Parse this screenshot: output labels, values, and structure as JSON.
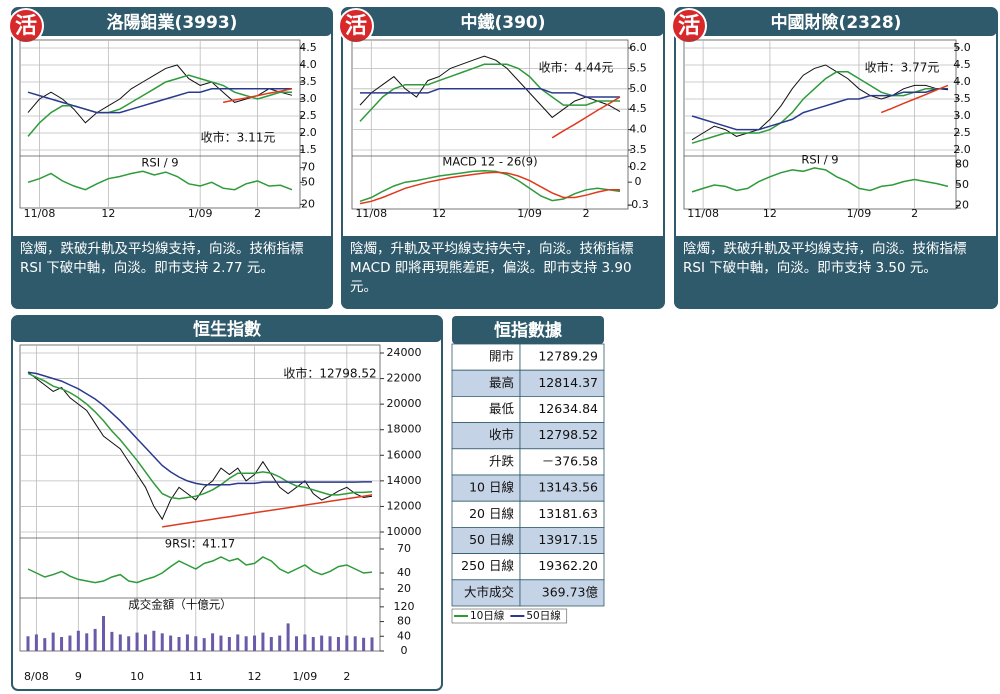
{
  "chart_data": [
    {
      "type": "line",
      "badge": "活",
      "title": "洛陽鉬業(3993)",
      "note": "收市：3.11元",
      "caption": "陰燭，跌破升軌及平均線支持，向淡。技術指標 RSI 下破中軸，向淡。即市支持 2.77 元。",
      "categories": [
        null,
        "11/08",
        null,
        null,
        null,
        null,
        null,
        "12",
        null,
        null,
        null,
        null,
        null,
        null,
        null,
        "1/09",
        null,
        null,
        null,
        null,
        "2",
        null,
        null,
        null
      ],
      "ylim": [
        1.5,
        4.5
      ],
      "yticks": [
        1.5,
        {
          "value": 2,
          "label": "2.0"
        },
        2.5,
        {
          "value": 3,
          "label": "3.0"
        },
        3.5,
        {
          "value": 4,
          "label": "4.0"
        },
        4.5
      ],
      "series": [
        {
          "color": "#111111",
          "values": [
            2.6,
            3.0,
            3.2,
            3.0,
            2.7,
            2.3,
            2.6,
            2.8,
            3.0,
            3.3,
            3.5,
            3.7,
            3.9,
            4.0,
            3.6,
            3.4,
            3.5,
            3.2,
            2.9,
            3.0,
            3.1,
            3.3,
            3.2,
            3.11
          ]
        },
        {
          "color": "#2e9b3a",
          "values": [
            1.9,
            2.3,
            2.6,
            2.8,
            2.8,
            2.7,
            2.6,
            2.6,
            2.7,
            2.9,
            3.1,
            3.3,
            3.5,
            3.6,
            3.7,
            3.6,
            3.5,
            3.4,
            3.2,
            3.1,
            3.0,
            3.1,
            3.2,
            3.2
          ]
        },
        {
          "color": "#2b3a8f",
          "values": [
            3.2,
            3.1,
            3.0,
            2.9,
            2.8,
            2.7,
            2.6,
            2.6,
            2.6,
            2.7,
            2.8,
            2.9,
            3.0,
            3.1,
            3.2,
            3.2,
            3.3,
            3.3,
            3.3,
            3.3,
            3.3,
            3.3,
            3.3,
            3.3
          ]
        },
        {
          "color": "#e03a1e",
          "values": [
            null,
            null,
            null,
            null,
            null,
            null,
            null,
            null,
            null,
            null,
            null,
            null,
            null,
            null,
            null,
            null,
            null,
            2.9,
            2.97,
            3.03,
            3.1,
            3.17,
            3.23,
            3.3
          ]
        }
      ],
      "indicator": {
        "title": "RSI / 9",
        "ylim": [
          15,
          75
        ],
        "yticks": [
          20,
          50,
          70
        ],
        "series": [
          {
            "color": "#2e9b3a",
            "values": [
              50,
              55,
              62,
              52,
              45,
              40,
              48,
              55,
              58,
              62,
              65,
              60,
              64,
              58,
              48,
              45,
              50,
              42,
              40,
              48,
              52,
              45,
              46,
              40
            ]
          }
        ]
      }
    },
    {
      "type": "line",
      "badge": "活",
      "title": "中鐵(390)",
      "note": "收市：4.44元",
      "caption": "陰燭，升軌及平均線支持失守，向淡。技術指標 MACD 即將再現熊差距，偏淡。即市支持 3.90 元。",
      "categories": [
        null,
        "11/08",
        null,
        null,
        null,
        null,
        null,
        "12",
        null,
        null,
        null,
        null,
        null,
        null,
        null,
        "1/09",
        null,
        null,
        null,
        null,
        "2",
        null,
        null,
        null
      ],
      "ylim": [
        3.5,
        6.0
      ],
      "yticks": [
        3.5,
        {
          "value": 4,
          "label": "4.0"
        },
        4.5,
        {
          "value": 5,
          "label": "5.0"
        },
        5.5,
        {
          "value": 6,
          "label": "6.0"
        }
      ],
      "series": [
        {
          "color": "#111111",
          "values": [
            4.6,
            4.9,
            5.1,
            5.3,
            5.0,
            4.8,
            5.2,
            5.3,
            5.5,
            5.6,
            5.7,
            5.8,
            5.7,
            5.5,
            5.2,
            4.9,
            4.6,
            4.3,
            4.5,
            4.7,
            4.8,
            4.7,
            4.6,
            4.44
          ]
        },
        {
          "color": "#2e9b3a",
          "values": [
            4.2,
            4.5,
            4.8,
            5.0,
            5.1,
            5.1,
            5.1,
            5.2,
            5.3,
            5.4,
            5.5,
            5.6,
            5.6,
            5.6,
            5.5,
            5.3,
            5.0,
            4.8,
            4.6,
            4.6,
            4.6,
            4.7,
            4.7,
            4.7
          ]
        },
        {
          "color": "#2b3a8f",
          "values": [
            4.9,
            4.9,
            4.9,
            4.9,
            4.9,
            4.9,
            4.9,
            5.0,
            5.0,
            5.0,
            5.0,
            5.0,
            5.0,
            5.0,
            5.0,
            5.0,
            5.0,
            4.9,
            4.9,
            4.9,
            4.8,
            4.8,
            4.8,
            4.8
          ]
        },
        {
          "color": "#e03a1e",
          "values": [
            null,
            null,
            null,
            null,
            null,
            null,
            null,
            null,
            null,
            null,
            null,
            null,
            null,
            null,
            null,
            null,
            null,
            3.8,
            3.97,
            4.13,
            4.3,
            4.47,
            4.63,
            4.8
          ]
        }
      ],
      "indicator": {
        "title": "MACD 12 - 26(9)",
        "ylim": [
          -0.35,
          0.25
        ],
        "yticks": [
          -0.3,
          0,
          0.2
        ],
        "series": [
          {
            "color": "#2e9b3a",
            "values": [
              -0.25,
              -0.2,
              -0.12,
              -0.05,
              0,
              0.02,
              0.05,
              0.08,
              0.1,
              0.12,
              0.14,
              0.15,
              0.14,
              0.1,
              0.02,
              -0.08,
              -0.18,
              -0.24,
              -0.22,
              -0.15,
              -0.1,
              -0.08,
              -0.1,
              -0.12
            ]
          },
          {
            "color": "#e03a1e",
            "values": [
              -0.28,
              -0.25,
              -0.2,
              -0.14,
              -0.08,
              -0.04,
              0,
              0.03,
              0.06,
              0.08,
              0.1,
              0.12,
              0.13,
              0.12,
              0.08,
              0.02,
              -0.06,
              -0.14,
              -0.2,
              -0.2,
              -0.17,
              -0.13,
              -0.1,
              -0.1
            ]
          }
        ]
      }
    },
    {
      "type": "line",
      "badge": "活",
      "title": "中國財險(2328)",
      "note": "收市：3.77元",
      "caption": "陰燭，跌破升軌及平均線支持，向淡。技術指標 RSI 下破中軸，向淡。即市支持 3.50 元。",
      "categories": [
        null,
        "11/08",
        null,
        null,
        null,
        null,
        null,
        "12",
        null,
        null,
        null,
        null,
        null,
        null,
        null,
        "1/09",
        null,
        null,
        null,
        null,
        "2",
        null,
        null,
        null
      ],
      "ylim": [
        2.0,
        5.0
      ],
      "yticks": [
        {
          "value": 2,
          "label": "2.0"
        },
        2.5,
        {
          "value": 3,
          "label": "3.0"
        },
        3.5,
        {
          "value": 4,
          "label": "4.0"
        },
        4.5,
        {
          "value": 5,
          "label": "5.0"
        }
      ],
      "series": [
        {
          "color": "#111111",
          "values": [
            2.3,
            2.5,
            2.7,
            2.6,
            2.4,
            2.5,
            2.6,
            2.9,
            3.3,
            3.8,
            4.2,
            4.4,
            4.5,
            4.3,
            4.1,
            3.8,
            3.6,
            3.5,
            3.6,
            3.8,
            3.9,
            3.9,
            3.8,
            3.77
          ]
        },
        {
          "color": "#2e9b3a",
          "values": [
            2.2,
            2.3,
            2.4,
            2.5,
            2.5,
            2.5,
            2.5,
            2.6,
            2.8,
            3.1,
            3.5,
            3.8,
            4.1,
            4.3,
            4.3,
            4.1,
            3.9,
            3.7,
            3.6,
            3.6,
            3.7,
            3.8,
            3.8,
            3.8
          ]
        },
        {
          "color": "#2b3a8f",
          "values": [
            3.0,
            2.9,
            2.8,
            2.7,
            2.6,
            2.6,
            2.6,
            2.7,
            2.8,
            2.9,
            3.1,
            3.2,
            3.3,
            3.4,
            3.5,
            3.5,
            3.6,
            3.6,
            3.6,
            3.7,
            3.7,
            3.7,
            3.8,
            3.8
          ]
        },
        {
          "color": "#e03a1e",
          "values": [
            null,
            null,
            null,
            null,
            null,
            null,
            null,
            null,
            null,
            null,
            null,
            null,
            null,
            null,
            null,
            null,
            null,
            3.1,
            3.23,
            3.37,
            3.5,
            3.63,
            3.77,
            3.9
          ]
        }
      ],
      "indicator": {
        "title": "RSI / 9",
        "ylim": [
          15,
          85
        ],
        "yticks": [
          20,
          50,
          80
        ],
        "series": [
          {
            "color": "#2e9b3a",
            "values": [
              40,
              45,
              50,
              48,
              42,
              45,
              55,
              62,
              68,
              72,
              70,
              75,
              72,
              62,
              55,
              45,
              42,
              48,
              50,
              55,
              58,
              55,
              52,
              48
            ]
          }
        ]
      }
    },
    {
      "type": "line",
      "title": "恒生指數",
      "note": "收市：12798.52",
      "categories": [
        null,
        "8/08",
        null,
        null,
        null,
        null,
        "9",
        null,
        null,
        null,
        null,
        null,
        null,
        "10",
        null,
        null,
        null,
        null,
        null,
        null,
        "11",
        null,
        null,
        null,
        null,
        null,
        null,
        "12",
        null,
        null,
        null,
        null,
        null,
        "1/09",
        null,
        null,
        null,
        null,
        "2",
        null,
        null,
        null
      ],
      "ylim": [
        10000,
        24000
      ],
      "yticks": [
        10000,
        12000,
        14000,
        16000,
        18000,
        20000,
        22000,
        24000
      ],
      "series": [
        {
          "color": "#111111",
          "values": [
            22500,
            22000,
            21500,
            21000,
            21300,
            20500,
            20000,
            19500,
            18500,
            17500,
            17000,
            16500,
            15500,
            14500,
            13500,
            12000,
            11000,
            12500,
            13500,
            13000,
            12500,
            13500,
            14000,
            15000,
            14500,
            15000,
            14000,
            14500,
            15500,
            14500,
            13500,
            13000,
            13500,
            14000,
            13000,
            12500,
            12800,
            13200,
            13500,
            13000,
            12700,
            12798.52
          ]
        },
        {
          "name": "10日線",
          "color": "#2e9b3a",
          "values": [
            22400,
            22100,
            21800,
            21400,
            21200,
            20900,
            20500,
            20000,
            19400,
            18700,
            17900,
            17200,
            16400,
            15600,
            14700,
            13800,
            13000,
            12700,
            12600,
            12700,
            12800,
            13000,
            13300,
            13700,
            14200,
            14600,
            14600,
            14600,
            14700,
            14600,
            14300,
            13900,
            13600,
            13500,
            13300,
            13100,
            12900,
            12900,
            13000,
            13100,
            13100,
            13143.56
          ]
        },
        {
          "name": "50日線",
          "color": "#2b3a8f",
          "values": [
            22500,
            22400,
            22200,
            22000,
            21800,
            21500,
            21200,
            20800,
            20400,
            19900,
            19300,
            18700,
            18000,
            17300,
            16600,
            15900,
            15200,
            14700,
            14300,
            14000,
            13800,
            13700,
            13700,
            13700,
            13700,
            13800,
            13800,
            13800,
            13900,
            13900,
            13900,
            13900,
            13900,
            13900,
            13900,
            13900,
            13900,
            13900,
            13900,
            13900,
            13917.15,
            13917.15
          ]
        },
        {
          "color": "#e03a1e",
          "values": [
            null,
            null,
            null,
            null,
            null,
            null,
            null,
            null,
            null,
            null,
            null,
            null,
            null,
            null,
            null,
            null,
            10400,
            10500,
            10600,
            10700,
            10800,
            10900,
            11000,
            11100,
            11200,
            11300,
            11400,
            11500,
            11600,
            11700,
            11800,
            11900,
            12000,
            12100,
            12200,
            12300,
            12400,
            12500,
            12600,
            12700,
            12800,
            12900
          ]
        }
      ],
      "indicator": {
        "title": "9RSI：41.17",
        "ylim": [
          15,
          75
        ],
        "yticks": [
          20,
          40,
          70
        ],
        "series": [
          {
            "color": "#2e9b3a",
            "values": [
              45,
              40,
              35,
              38,
              42,
              36,
              32,
              30,
              28,
              30,
              35,
              38,
              30,
              28,
              32,
              35,
              40,
              48,
              55,
              50,
              45,
              52,
              55,
              60,
              55,
              58,
              50,
              52,
              60,
              55,
              45,
              40,
              45,
              50,
              42,
              38,
              42,
              48,
              50,
              45,
              40,
              41.17
            ]
          }
        ]
      },
      "volume": {
        "title": "成交金額（十億元）",
        "color": "#6a5aa8",
        "ylim": [
          0,
          125
        ],
        "yticks": [
          0,
          40,
          80,
          120
        ],
        "values": [
          40,
          45,
          35,
          50,
          38,
          42,
          55,
          48,
          60,
          95,
          52,
          45,
          40,
          50,
          45,
          55,
          48,
          42,
          38,
          45,
          40,
          35,
          48,
          42,
          38,
          45,
          40,
          42,
          50,
          38,
          42,
          75,
          40,
          45,
          38,
          42,
          40,
          38,
          42,
          40,
          36,
          37
        ]
      }
    }
  ],
  "table": {
    "title": "恒指數據",
    "rows": [
      [
        "開市",
        "12789.29"
      ],
      [
        "最高",
        "12814.37"
      ],
      [
        "最低",
        "12634.84"
      ],
      [
        "收市",
        "12798.52"
      ],
      [
        "升跌",
        "－376.58"
      ],
      [
        "10 日線",
        "13143.56"
      ],
      [
        "20 日線",
        "13181.63"
      ],
      [
        "50 日線",
        "13917.15"
      ],
      [
        "250 日線",
        "19362.20"
      ],
      [
        "大市成交",
        "369.73億"
      ]
    ]
  }
}
